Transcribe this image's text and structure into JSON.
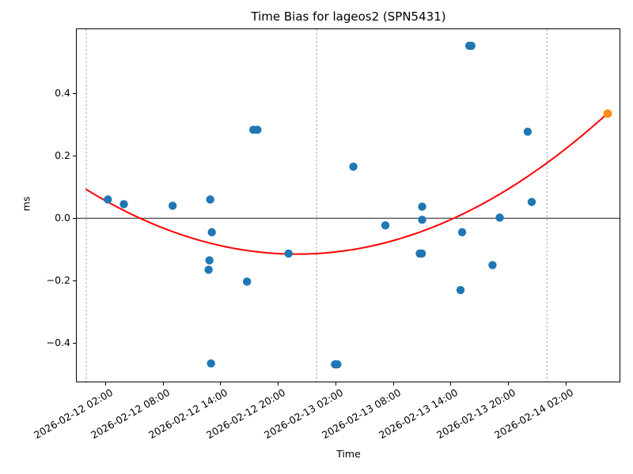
{
  "chart_data": {
    "type": "scatter",
    "title": "Time Bias for lageos2 (SPN5431)",
    "xlabel": "Time",
    "ylabel": "ms",
    "epoch": "2026-02-12 00:00",
    "xlim_hours": [
      -0.99,
      55.57
    ],
    "ylim": [
      -0.523,
      0.605
    ],
    "grid": false,
    "legend": "none",
    "y_ticks": [
      {
        "value": 0.4,
        "label": "0.4"
      },
      {
        "value": 0.2,
        "label": "0.2"
      },
      {
        "value": 0.0,
        "label": "0.0"
      },
      {
        "value": -0.2,
        "label": "−0.2"
      },
      {
        "value": -0.4,
        "label": "−0.4"
      }
    ],
    "x_ticks": [
      {
        "time": "2026-02-12 02:00",
        "label": "2026-02-12 02:00"
      },
      {
        "time": "2026-02-12 08:00",
        "label": "2026-02-12 08:00"
      },
      {
        "time": "2026-02-12 14:00",
        "label": "2026-02-12 14:00"
      },
      {
        "time": "2026-02-12 20:00",
        "label": "2026-02-12 20:00"
      },
      {
        "time": "2026-02-13 02:00",
        "label": "2026-02-13 02:00"
      },
      {
        "time": "2026-02-13 08:00",
        "label": "2026-02-13 08:00"
      },
      {
        "time": "2026-02-13 14:00",
        "label": "2026-02-13 14:00"
      },
      {
        "time": "2026-02-13 20:00",
        "label": "2026-02-13 20:00"
      },
      {
        "time": "2026-02-14 02:00",
        "label": "2026-02-14 02:00"
      }
    ],
    "series": [
      {
        "name": "time-bias-observation",
        "color": "#1f77b4",
        "marker": "circle",
        "marker_radius": 5.2,
        "points": [
          {
            "time": "2026-02-12 02:15",
            "ms": 0.06
          },
          {
            "time": "2026-02-12 03:55",
            "ms": 0.045
          },
          {
            "time": "2026-02-12 09:00",
            "ms": 0.04
          },
          {
            "time": "2026-02-12 12:55",
            "ms": 0.06
          },
          {
            "time": "2026-02-12 13:05",
            "ms": -0.045
          },
          {
            "time": "2026-02-12 12:50",
            "ms": -0.135
          },
          {
            "time": "2026-02-12 12:45",
            "ms": -0.165
          },
          {
            "time": "2026-02-12 13:00",
            "ms": -0.465
          },
          {
            "time": "2026-02-12 17:25",
            "ms": 0.283
          },
          {
            "time": "2026-02-12 17:50",
            "ms": 0.283
          },
          {
            "time": "2026-02-12 16:45",
            "ms": -0.203
          },
          {
            "time": "2026-02-12 21:05",
            "ms": -0.113
          },
          {
            "time": "2026-02-13 01:55",
            "ms": -0.468
          },
          {
            "time": "2026-02-13 02:10",
            "ms": -0.468
          },
          {
            "time": "2026-02-13 03:50",
            "ms": 0.165
          },
          {
            "time": "2026-02-13 07:10",
            "ms": -0.023
          },
          {
            "time": "2026-02-13 11:00",
            "ms": 0.037
          },
          {
            "time": "2026-02-13 11:00",
            "ms": -0.005
          },
          {
            "time": "2026-02-13 10:45",
            "ms": -0.113
          },
          {
            "time": "2026-02-13 10:58",
            "ms": -0.113
          },
          {
            "time": "2026-02-13 15:10",
            "ms": -0.045
          },
          {
            "time": "2026-02-13 15:00",
            "ms": -0.23
          },
          {
            "time": "2026-02-13 15:55",
            "ms": 0.552
          },
          {
            "time": "2026-02-13 16:08",
            "ms": 0.552
          },
          {
            "time": "2026-02-13 18:20",
            "ms": -0.15
          },
          {
            "time": "2026-02-13 19:05",
            "ms": 0.002
          },
          {
            "time": "2026-02-13 22:00",
            "ms": 0.277
          },
          {
            "time": "2026-02-13 22:25",
            "ms": 0.052
          }
        ]
      },
      {
        "name": "fit-endpoint",
        "color": "#ff8c14",
        "marker": "circle",
        "marker_radius": 5.4,
        "points": [
          {
            "time": "2026-02-14 06:20",
            "ms": 0.335
          }
        ]
      }
    ],
    "fit_curve": {
      "name": "quadratic-fit",
      "color": "#ff0000",
      "line_width": 2,
      "coeff_a_per_hour2": 0.00043,
      "vertex_hours": 21.95,
      "vertex_ms": -0.115,
      "t_start_hours": 0.0,
      "t_end_hours": 54.33
    },
    "reference_lines": {
      "zero_line": {
        "ms": 0.0,
        "color": "#1a1a1a"
      },
      "day_boundaries": {
        "color": "#74a9d9",
        "style": "dashed",
        "times": [
          "2026-02-12 00:00",
          "2026-02-13 00:00",
          "2026-02-14 00:00"
        ]
      }
    }
  }
}
